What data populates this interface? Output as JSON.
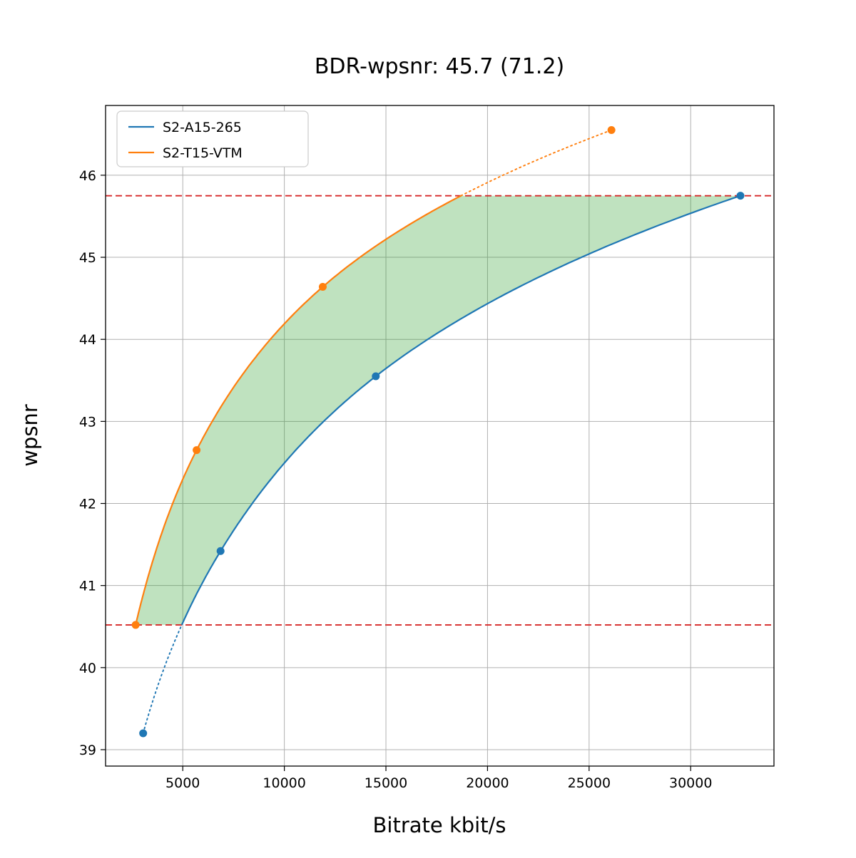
{
  "title": "BDR-wpsnr: 45.7 (71.2)",
  "chart_data": {
    "type": "line",
    "title": "BDR-wpsnr: 45.7 (71.2)",
    "xlabel": "Bitrate kbit/s",
    "ylabel": "wpsnr",
    "xlim": [
      1200,
      34100
    ],
    "ylim": [
      38.8,
      46.85
    ],
    "xticks": [
      5000,
      10000,
      15000,
      20000,
      25000,
      30000
    ],
    "yticks": [
      39,
      40,
      41,
      42,
      43,
      44,
      45,
      46
    ],
    "grid": true,
    "legend_position": "upper-left",
    "series": [
      {
        "name": "S2-A15-265",
        "color": "#1f77b4",
        "x": [
          3050,
          6860,
          14500,
          32450
        ],
        "y": [
          39.2,
          41.42,
          43.55,
          45.75
        ],
        "dotted_segment": "below-lower-bound"
      },
      {
        "name": "S2-T15-VTM",
        "color": "#ff7f0e",
        "x": [
          2680,
          5680,
          11890,
          26100
        ],
        "y": [
          40.52,
          42.65,
          44.64,
          46.55
        ],
        "dotted_segment": "above-upper-bound"
      }
    ],
    "bounds": {
      "upper": 45.75,
      "lower": 40.52,
      "color": "#d62728",
      "style": "dashed"
    },
    "shaded_region": {
      "color": "#2ca02c",
      "opacity": 0.3
    }
  }
}
